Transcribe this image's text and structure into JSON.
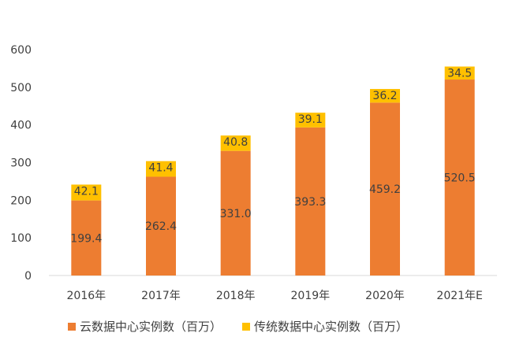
{
  "chart_data": {
    "type": "bar",
    "stacked": true,
    "categories": [
      "2016年",
      "2017年",
      "2018年",
      "2019年",
      "2020年",
      "2021年E"
    ],
    "series": [
      {
        "name": "云数据中心实例数（百万）",
        "color": "#ED7D31",
        "values": [
          199.4,
          262.4,
          331.0,
          393.3,
          459.2,
          520.5
        ]
      },
      {
        "name": "传统数据中心实例数（百万）",
        "color": "#FFC000",
        "values": [
          42.1,
          41.4,
          40.8,
          39.1,
          36.2,
          34.5
        ]
      }
    ],
    "data_labels": [
      [
        "199.4",
        "262.4",
        "331.0",
        "393.3",
        "459.2",
        "520.5"
      ],
      [
        "42.1",
        "41.4",
        "40.8",
        "39.1",
        "36.2",
        "34.5"
      ]
    ],
    "y_ticks": [
      0,
      100,
      200,
      300,
      400,
      500,
      600
    ],
    "ylim": [
      0,
      600
    ],
    "title": "",
    "xlabel": "",
    "ylabel": "",
    "grid": false,
    "legend_position": "bottom"
  }
}
